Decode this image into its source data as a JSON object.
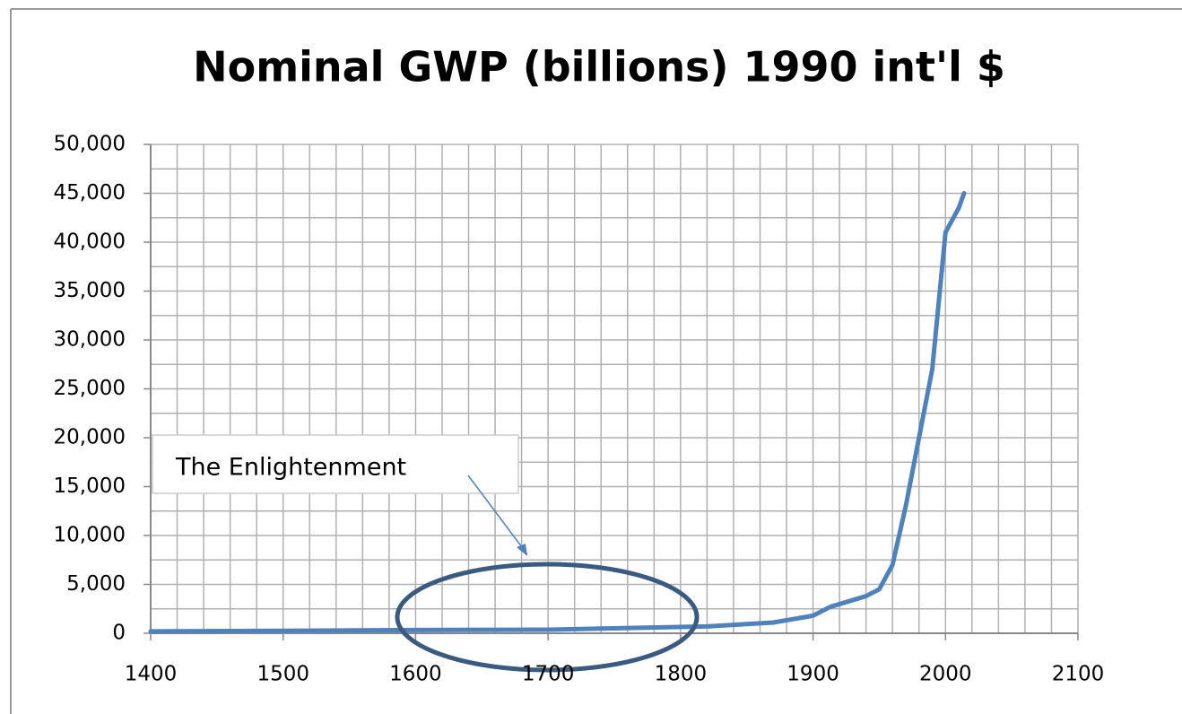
{
  "chart_data": {
    "type": "line",
    "title": "Nominal GWP (billions) 1990 int'l $",
    "x": [
      1400,
      1500,
      1600,
      1700,
      1820,
      1870,
      1900,
      1913,
      1940,
      1950,
      1960,
      1970,
      1980,
      1990,
      2000,
      2010,
      2014
    ],
    "series": [
      {
        "name": "GWP",
        "color": "#4f81bd",
        "values": [
          200,
          250,
          330,
          370,
          700,
          1100,
          1800,
          2700,
          3800,
          4500,
          7000,
          13000,
          20000,
          27000,
          41000,
          43500,
          45000
        ]
      }
    ],
    "xlim": [
      1400,
      2100
    ],
    "xticks": [
      1400,
      1500,
      1600,
      1700,
      1800,
      1900,
      2000,
      2100
    ],
    "ylim": [
      0,
      50000
    ],
    "yticks": [
      0,
      {
        "value": 5000,
        "label": "5,000"
      },
      {
        "value": 10000,
        "label": "10,000"
      },
      {
        "value": 15000,
        "label": "15,000"
      },
      {
        "value": 20000,
        "label": "20,000"
      },
      {
        "value": 25000,
        "label": "25,000"
      },
      {
        "value": 30000,
        "label": "30,000"
      },
      {
        "value": 35000,
        "label": "35,000"
      },
      {
        "value": 40000,
        "label": "40,000"
      },
      {
        "value": 45000,
        "label": "45,000"
      },
      {
        "value": 50000,
        "label": "50,000"
      }
    ],
    "minor_xstep": 20,
    "minor_ystep": 2500,
    "grid": true,
    "annotation": "The Enlightenment"
  }
}
